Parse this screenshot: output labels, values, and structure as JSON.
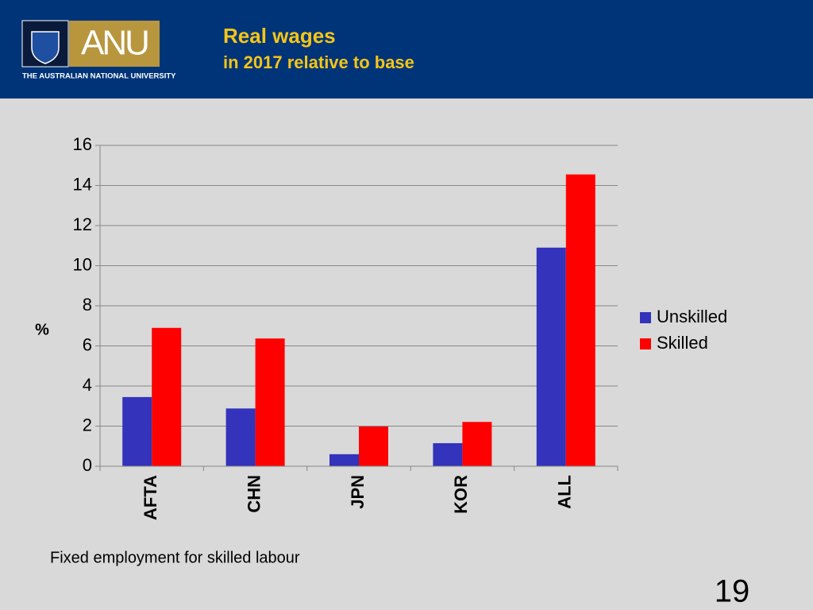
{
  "header": {
    "logo_text": "ANU",
    "university": "THE AUSTRALIAN NATIONAL UNIVERSITY"
  },
  "chart_data": {
    "type": "bar",
    "title": "Real wages",
    "subtitle": "in 2017 relative to base",
    "y_label": "%",
    "categories": [
      "AFTA",
      "CHN",
      "JPN",
      "KOR",
      "ALL"
    ],
    "series": [
      {
        "name": "Unskilled",
        "color": "#3333bb",
        "values": [
          3.45,
          2.88,
          0.6,
          1.15,
          10.9
        ]
      },
      {
        "name": "Skilled",
        "color": "#ff0000",
        "values": [
          6.9,
          6.37,
          1.98,
          2.21,
          14.55
        ]
      }
    ],
    "ylim": [
      0,
      16
    ],
    "yticks": [
      0,
      2,
      4,
      6,
      8,
      10,
      12,
      14,
      16
    ],
    "grid": true,
    "legend": "right",
    "note": "Fixed employment for skilled labour"
  },
  "slide_number": "19"
}
